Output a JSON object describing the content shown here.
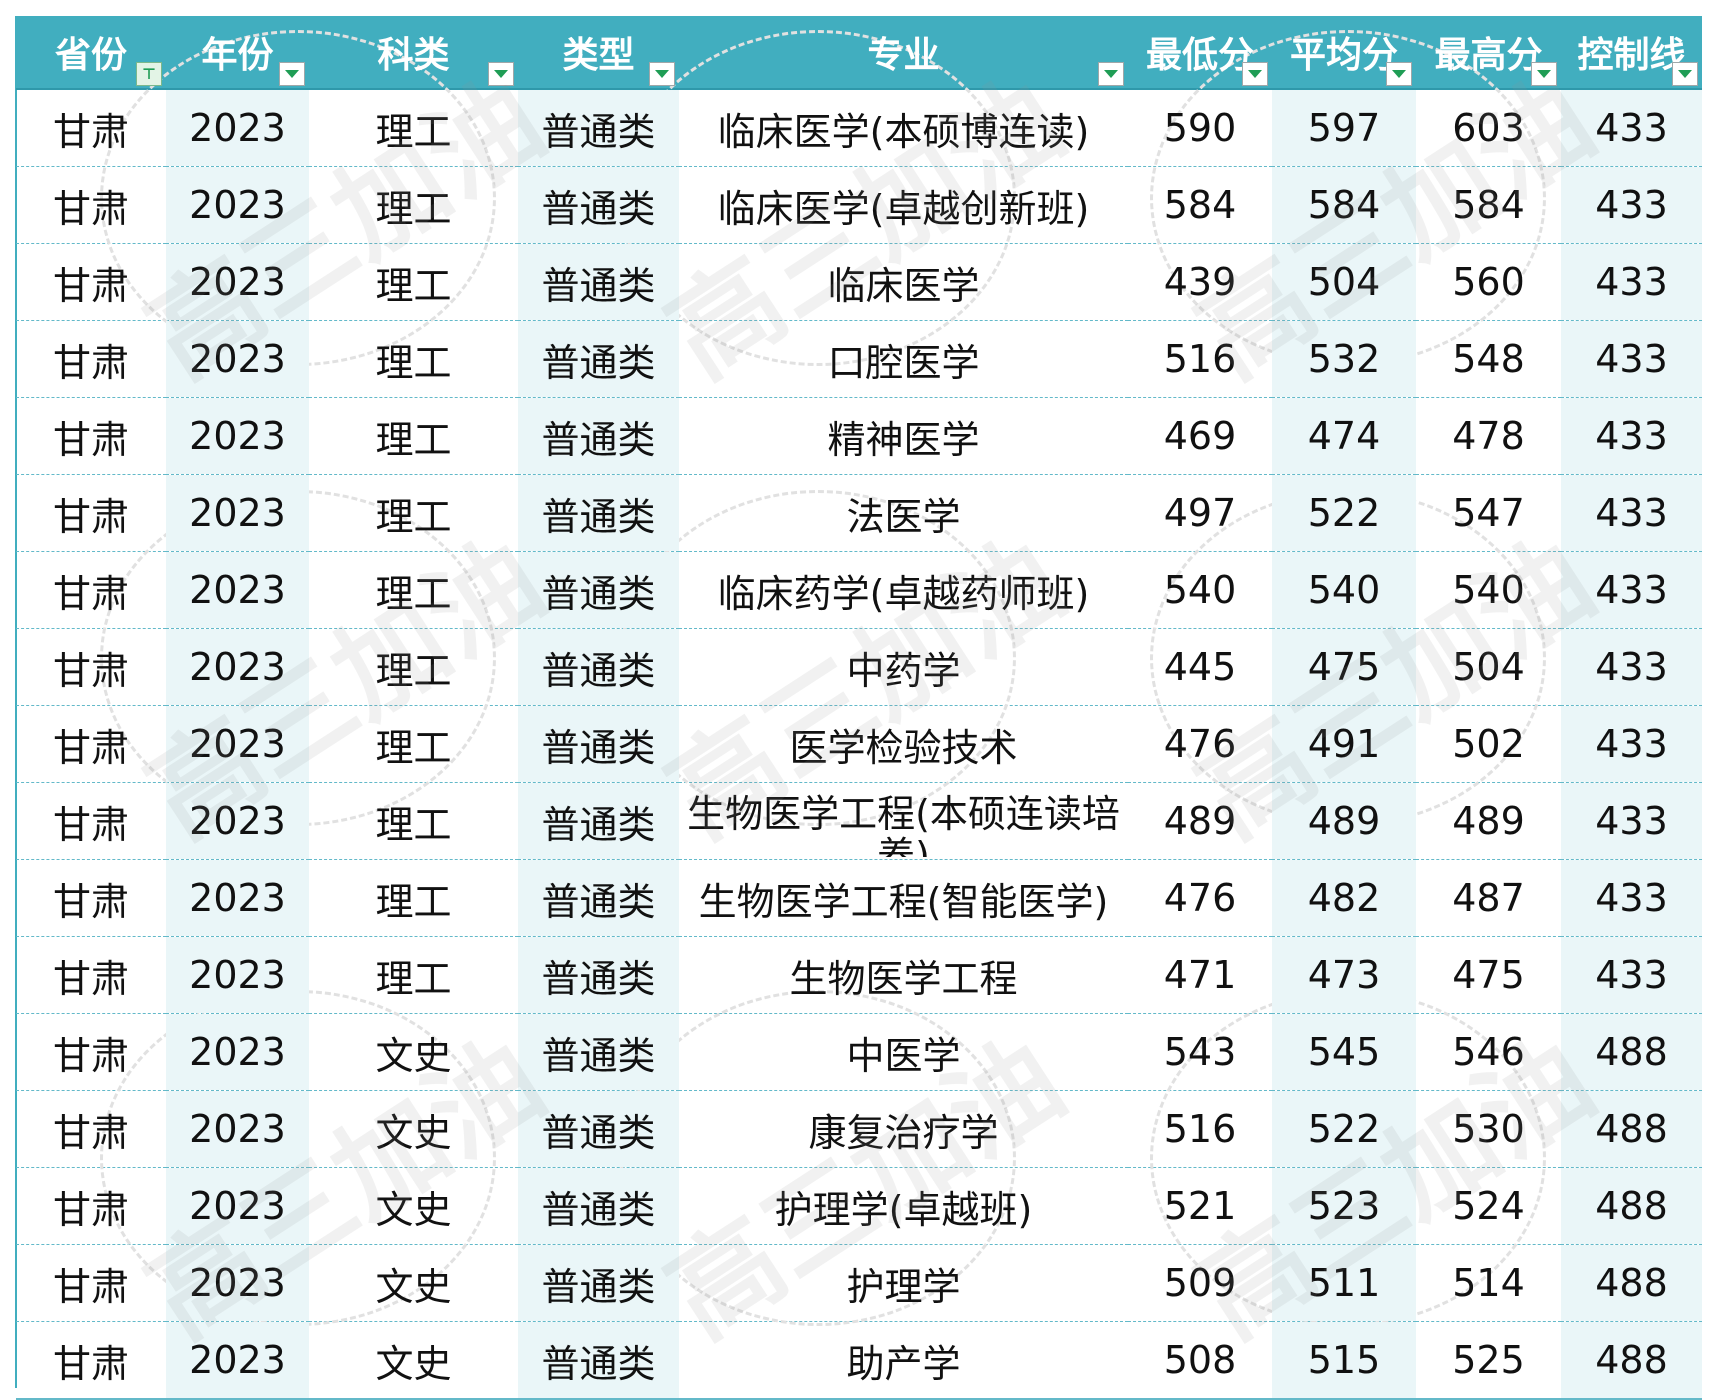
{
  "headers": [
    "省份",
    "年份",
    "科类",
    "类型",
    "专业",
    "最低分",
    "平均分",
    "最高分",
    "控制线"
  ],
  "filter_active_column": 0,
  "colors": {
    "header_bg": "#41aebf",
    "header_text": "#ffffff",
    "row_border": "#63b9c9",
    "shaded_column_bg": "#eaf6f8",
    "filter_icon": "#1f9d55"
  },
  "watermark_text": "高三加油",
  "rows": [
    [
      "甘肃",
      "2023",
      "理工",
      "普通类",
      "临床医学(本硕博连读)",
      "590",
      "597",
      "603",
      "433"
    ],
    [
      "甘肃",
      "2023",
      "理工",
      "普通类",
      "临床医学(卓越创新班)",
      "584",
      "584",
      "584",
      "433"
    ],
    [
      "甘肃",
      "2023",
      "理工",
      "普通类",
      "临床医学",
      "439",
      "504",
      "560",
      "433"
    ],
    [
      "甘肃",
      "2023",
      "理工",
      "普通类",
      "口腔医学",
      "516",
      "532",
      "548",
      "433"
    ],
    [
      "甘肃",
      "2023",
      "理工",
      "普通类",
      "精神医学",
      "469",
      "474",
      "478",
      "433"
    ],
    [
      "甘肃",
      "2023",
      "理工",
      "普通类",
      "法医学",
      "497",
      "522",
      "547",
      "433"
    ],
    [
      "甘肃",
      "2023",
      "理工",
      "普通类",
      "临床药学(卓越药师班)",
      "540",
      "540",
      "540",
      "433"
    ],
    [
      "甘肃",
      "2023",
      "理工",
      "普通类",
      "中药学",
      "445",
      "475",
      "504",
      "433"
    ],
    [
      "甘肃",
      "2023",
      "理工",
      "普通类",
      "医学检验技术",
      "476",
      "491",
      "502",
      "433"
    ],
    [
      "甘肃",
      "2023",
      "理工",
      "普通类",
      "生物医学工程(本硕连读培养)",
      "489",
      "489",
      "489",
      "433"
    ],
    [
      "甘肃",
      "2023",
      "理工",
      "普通类",
      "生物医学工程(智能医学)",
      "476",
      "482",
      "487",
      "433"
    ],
    [
      "甘肃",
      "2023",
      "理工",
      "普通类",
      "生物医学工程",
      "471",
      "473",
      "475",
      "433"
    ],
    [
      "甘肃",
      "2023",
      "文史",
      "普通类",
      "中医学",
      "543",
      "545",
      "546",
      "488"
    ],
    [
      "甘肃",
      "2023",
      "文史",
      "普通类",
      "康复治疗学",
      "516",
      "522",
      "530",
      "488"
    ],
    [
      "甘肃",
      "2023",
      "文史",
      "普通类",
      "护理学(卓越班)",
      "521",
      "523",
      "524",
      "488"
    ],
    [
      "甘肃",
      "2023",
      "文史",
      "普通类",
      "护理学",
      "509",
      "511",
      "514",
      "488"
    ],
    [
      "甘肃",
      "2023",
      "文史",
      "普通类",
      "助产学",
      "508",
      "515",
      "525",
      "488"
    ]
  ]
}
